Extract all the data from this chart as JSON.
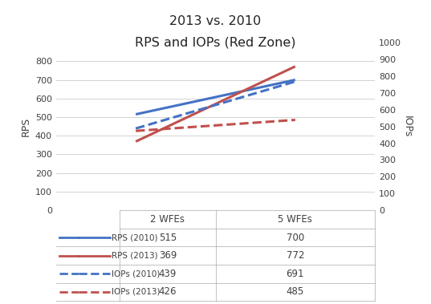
{
  "title_line1": "2013 vs. 2010",
  "title_line2": "RPS and IOPs (Red Zone)",
  "x_labels": [
    "2 WFEs",
    "5 WFEs"
  ],
  "x_positions": [
    1,
    2
  ],
  "series": {
    "RPS_2010": {
      "values": [
        515,
        700
      ],
      "color": "#4472C4",
      "linestyle": "solid",
      "label": "RPS (2010)"
    },
    "RPS_2013": {
      "values": [
        369,
        772
      ],
      "color": "#C0504D",
      "linestyle": "solid",
      "label": "RPS (2013)"
    },
    "IOPs_2010": {
      "values": [
        439,
        691
      ],
      "color": "#4472C4",
      "linestyle": "dashed",
      "label": "IOPs (2010)"
    },
    "IOPs_2013": {
      "values": [
        426,
        485
      ],
      "color": "#C0504D",
      "linestyle": "dashed",
      "label": "IOPs (2013)"
    }
  },
  "left_ylabel": "RPS",
  "right_ylabel": "IOPs",
  "left_ylim": [
    0,
    900
  ],
  "right_ylim": [
    0,
    1000
  ],
  "left_yticks": [
    0,
    100,
    200,
    300,
    400,
    500,
    600,
    700,
    800
  ],
  "right_yticks": [
    0,
    100,
    200,
    300,
    400,
    500,
    600,
    700,
    800,
    900,
    1000
  ],
  "table_rows": [
    {
      "label": "RPS (2010)",
      "v1": "515",
      "v2": "700",
      "series_key": "RPS_2010"
    },
    {
      "label": "RPS (2013)",
      "v1": "369",
      "v2": "772",
      "series_key": "RPS_2013"
    },
    {
      "label": "IOPs (2010)",
      "v1": "439",
      "v2": "691",
      "series_key": "IOPs_2010"
    },
    {
      "label": "IOPs (2013)",
      "v1": "426",
      "v2": "485",
      "series_key": "IOPs_2013"
    }
  ],
  "line_width": 2.2,
  "background_color": "#ffffff",
  "grid_color": "#d3d3d3",
  "text_color": "#404040"
}
